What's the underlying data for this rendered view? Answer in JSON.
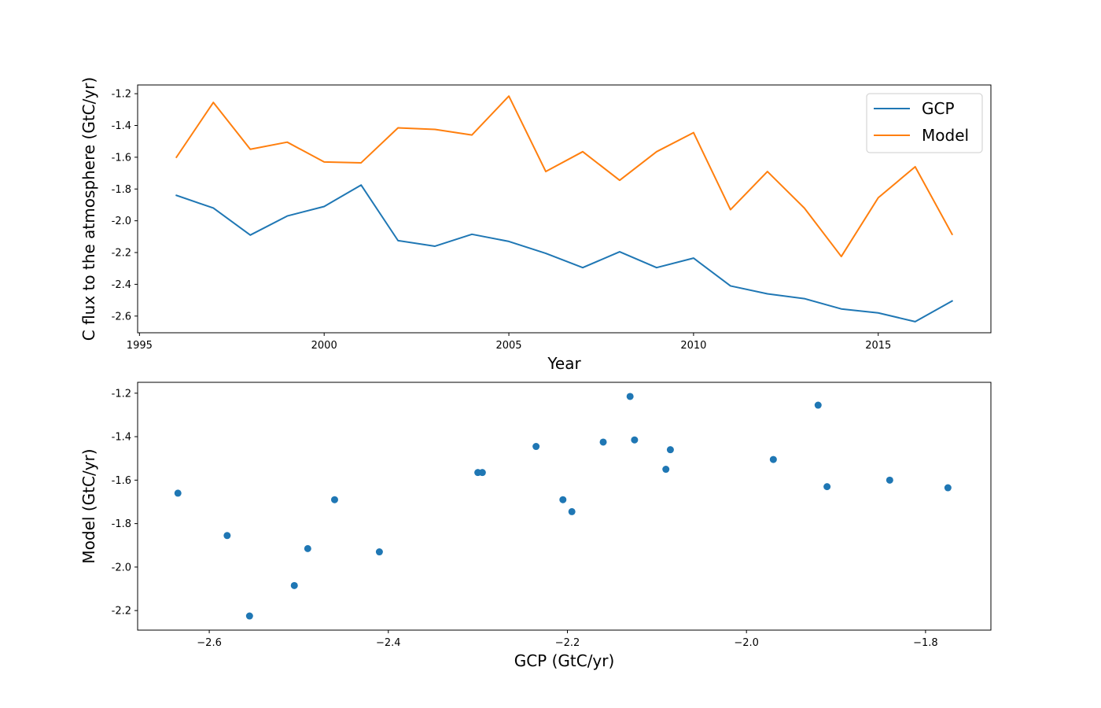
{
  "chart_data": [
    {
      "type": "line",
      "title": "",
      "xlabel": "Year",
      "ylabel": "C flux to the atmosphere (GtC/yr)",
      "xlim": [
        1994.95,
        2018.05
      ],
      "ylim": [
        -2.705,
        -1.145
      ],
      "xticks": [
        1995,
        2000,
        2005,
        2010,
        2015
      ],
      "xtick_labels": [
        "1995",
        "2000",
        "2005",
        "2010",
        "2015"
      ],
      "yticks": [
        -2.6,
        -2.4,
        -2.2,
        -2.0,
        -1.8,
        -1.6,
        -1.4,
        -1.2
      ],
      "ytick_labels": [
        "-2.6",
        "-2.4",
        "-2.2",
        "-2.0",
        "-1.8",
        "-1.6",
        "-1.4",
        "-1.2"
      ],
      "grid": false,
      "legend": "upper right",
      "x": [
        1996,
        1997,
        1998,
        1999,
        2000,
        2001,
        2002,
        2003,
        2004,
        2005,
        2006,
        2007,
        2008,
        2009,
        2010,
        2011,
        2012,
        2013,
        2014,
        2015,
        2016,
        2017
      ],
      "series": [
        {
          "name": "GCP",
          "color": "#1f77b4",
          "values": [
            -1.84,
            -1.92,
            -2.09,
            -1.97,
            -1.91,
            -1.775,
            -2.125,
            -2.16,
            -2.085,
            -2.13,
            -2.205,
            -2.295,
            -2.195,
            -2.295,
            -2.235,
            -2.41,
            -2.46,
            -2.49,
            -2.555,
            -2.58,
            -2.635,
            -2.505
          ]
        },
        {
          "name": "Model",
          "color": "#ff7f0e",
          "values": [
            -1.6,
            -1.255,
            -1.55,
            -1.505,
            -1.63,
            -1.635,
            -1.415,
            -1.425,
            -1.46,
            -1.215,
            -1.69,
            -1.565,
            -1.745,
            -1.565,
            -1.445,
            -1.93,
            -1.69,
            -1.92,
            -2.225,
            -1.855,
            -1.66,
            -2.085
          ]
        }
      ]
    },
    {
      "type": "scatter",
      "title": "",
      "xlabel": "GCP (GtC/yr)",
      "ylabel": "Model (GtC/yr)",
      "xlim": [
        -2.68,
        -1.727
      ],
      "ylim": [
        -2.29,
        -1.15
      ],
      "xticks": [
        -2.6,
        -2.4,
        -2.2,
        -2.0,
        -1.8
      ],
      "xtick_labels": [
        "−2.6",
        "−2.4",
        "−2.2",
        "−2.0",
        "−1.8"
      ],
      "yticks": [
        -2.2,
        -2.0,
        -1.8,
        -1.6,
        -1.4,
        -1.2
      ],
      "ytick_labels": [
        "-2.2",
        "-2.0",
        "-1.8",
        "-1.6",
        "-1.4",
        "-1.2"
      ],
      "grid": false,
      "color": "#1f77b4",
      "points": [
        {
          "x": -1.84,
          "y": -1.6
        },
        {
          "x": -1.92,
          "y": -1.255
        },
        {
          "x": -2.09,
          "y": -1.55
        },
        {
          "x": -1.97,
          "y": -1.505
        },
        {
          "x": -1.91,
          "y": -1.63
        },
        {
          "x": -1.775,
          "y": -1.635
        },
        {
          "x": -2.125,
          "y": -1.415
        },
        {
          "x": -2.16,
          "y": -1.425
        },
        {
          "x": -2.085,
          "y": -1.46
        },
        {
          "x": -2.13,
          "y": -1.215
        },
        {
          "x": -2.205,
          "y": -1.69
        },
        {
          "x": -2.295,
          "y": -1.565
        },
        {
          "x": -2.195,
          "y": -1.745
        },
        {
          "x": -2.3,
          "y": -1.565
        },
        {
          "x": -2.235,
          "y": -1.445
        },
        {
          "x": -2.41,
          "y": -1.93
        },
        {
          "x": -2.46,
          "y": -1.69
        },
        {
          "x": -2.49,
          "y": -1.915
        },
        {
          "x": -2.555,
          "y": -2.225
        },
        {
          "x": -2.58,
          "y": -1.855
        },
        {
          "x": -2.635,
          "y": -1.66
        },
        {
          "x": -2.505,
          "y": -2.085
        }
      ]
    }
  ]
}
